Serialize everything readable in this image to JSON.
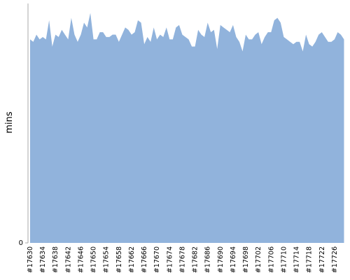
{
  "chart_data": {
    "type": "area",
    "y_label": "mins",
    "categories": [
      "#17630",
      null,
      null,
      null,
      "#17634",
      null,
      null,
      null,
      "#17638",
      null,
      null,
      null,
      "#17642",
      null,
      null,
      null,
      "#17646",
      null,
      null,
      null,
      "#17650",
      null,
      null,
      null,
      "#17654",
      null,
      null,
      null,
      "#17658",
      null,
      null,
      null,
      "#17662",
      null,
      null,
      null,
      "#17666",
      null,
      null,
      null,
      "#17670",
      null,
      null,
      null,
      "#17674",
      null,
      null,
      null,
      "#17678",
      null,
      null,
      null,
      "#17682",
      null,
      null,
      null,
      "#17686",
      null,
      null,
      null,
      "#17690",
      null,
      null,
      null,
      "#17694",
      null,
      null,
      null,
      "#17698",
      null,
      null,
      null,
      "#17702",
      null,
      null,
      null,
      "#17706",
      null,
      null,
      null,
      "#17710",
      null,
      null,
      null,
      "#17714",
      null,
      null,
      null,
      "#17718",
      null,
      null,
      null,
      "#17722",
      null,
      null,
      null,
      "#17726",
      null,
      null,
      null
    ],
    "values": [
      85,
      84,
      87,
      85,
      86,
      85,
      93,
      82,
      87,
      86,
      89,
      87,
      85,
      94,
      87,
      84,
      87,
      92,
      90,
      96,
      85,
      85,
      88,
      88,
      86,
      86,
      87,
      87,
      84,
      87,
      90,
      89,
      87,
      88,
      93,
      92,
      83,
      86,
      84,
      90,
      85,
      87,
      86,
      90,
      85,
      85,
      90,
      91,
      87,
      86,
      85,
      82,
      82,
      89,
      87,
      86,
      92,
      88,
      89,
      81,
      91,
      90,
      89,
      88,
      91,
      86,
      84,
      80,
      87,
      85,
      85,
      87,
      88,
      83,
      86,
      88,
      88,
      93,
      94,
      92,
      86,
      85,
      84,
      83,
      84,
      84,
      80,
      87,
      83,
      82,
      84,
      87,
      88,
      86,
      84,
      84,
      85,
      88,
      87,
      85
    ],
    "color": "#91b3dc",
    "ylim": [
      0,
      100
    ],
    "yticks": [
      0
    ]
  }
}
